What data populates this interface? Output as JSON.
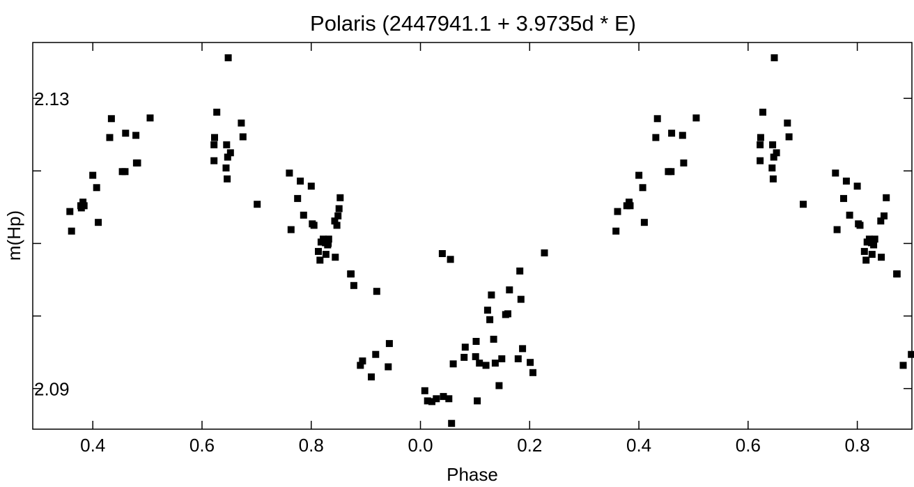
{
  "chart_data": {
    "type": "scatter",
    "title": "Polaris (2447941.1 + 3.9735d * E)",
    "xlabel": "Phase",
    "ylabel": "m(Hp)",
    "x_axis_note": "phase wraps from 1.0 to 0.0; x values are continuous, tick labels show phase mod 1",
    "xlim": [
      0.29,
      1.9
    ],
    "ylim": [
      2.1377,
      2.0844
    ],
    "y_inverted": true,
    "grid": false,
    "legend": "none",
    "x_ticks": [
      {
        "x": 0.4,
        "label": "0.4"
      },
      {
        "x": 0.6,
        "label": "0.6"
      },
      {
        "x": 0.8,
        "label": "0.8"
      },
      {
        "x": 1.0,
        "label": "0.0"
      },
      {
        "x": 1.2,
        "label": "0.2"
      },
      {
        "x": 1.4,
        "label": "0.4"
      },
      {
        "x": 1.6,
        "label": "0.6"
      },
      {
        "x": 1.8,
        "label": "0.8"
      }
    ],
    "y_ticks": [
      {
        "y": 2.09,
        "label": "2.09"
      },
      {
        "y": 2.13,
        "label": "2.13"
      }
    ],
    "y_minor_ticks": [
      2.1,
      2.11,
      2.12
    ],
    "marker": {
      "shape": "square",
      "color": "#000000"
    },
    "x": [
      0.361,
      0.358,
      0.378,
      0.382,
      0.379,
      0.384,
      0.41,
      0.407,
      0.4,
      0.431,
      0.434,
      0.454,
      0.459,
      0.46,
      0.482,
      0.48,
      0.479,
      0.505,
      0.622,
      0.622,
      0.623,
      0.627,
      0.644,
      0.647,
      0.646,
      0.652,
      0.645,
      0.672,
      0.675,
      0.648,
      0.701,
      0.76,
      0.763,
      0.775,
      0.78,
      0.786,
      0.8,
      0.802,
      0.805,
      0.813,
      0.816,
      0.818,
      0.822,
      0.826,
      0.83,
      0.827,
      0.831,
      0.832,
      0.843,
      0.844,
      0.847,
      0.849,
      0.851,
      0.853,
      0.872,
      0.873,
      0.878,
      0.89,
      0.894,
      0.91,
      0.92,
      0.918,
      0.941,
      0.943,
      1.008,
      1.013,
      1.021,
      1.029,
      1.042,
      1.052,
      1.057,
      1.04,
      1.055,
      1.06,
      1.08,
      1.082,
      1.101,
      1.104,
      1.108,
      1.102,
      1.12,
      1.123,
      1.127,
      1.13,
      1.134,
      1.137,
      1.144,
      1.149,
      1.156,
      1.16,
      1.163,
      1.179,
      1.184,
      1.187,
      1.182,
      1.201,
      1.206,
      1.227,
      1.361,
      1.358,
      1.378,
      1.382,
      1.384,
      1.41,
      1.407,
      1.4,
      1.431,
      1.434,
      1.454,
      1.459,
      1.46,
      1.482,
      1.48,
      1.505,
      1.622,
      1.622,
      1.623,
      1.627,
      1.644,
      1.647,
      1.646,
      1.652,
      1.645,
      1.672,
      1.675,
      1.648,
      1.701,
      1.76,
      1.763,
      1.775,
      1.78,
      1.786,
      1.8,
      1.802,
      1.805,
      1.813,
      1.816,
      1.818,
      1.822,
      1.826,
      1.83,
      1.827,
      1.832,
      1.843,
      1.844,
      1.849,
      1.853,
      1.872,
      1.873,
      1.884,
      1.899
    ],
    "y": [
      2.1117,
      2.1144,
      2.1152,
      2.1157,
      2.1149,
      2.1152,
      2.1129,
      2.1177,
      2.1194,
      2.1246,
      2.1272,
      2.1199,
      2.1199,
      2.1252,
      2.1211,
      2.1211,
      2.1249,
      2.1273,
      2.1214,
      2.1236,
      2.1246,
      2.1281,
      2.1204,
      2.1219,
      2.1189,
      2.1225,
      2.1236,
      2.1266,
      2.1247,
      2.1356,
      2.1154,
      2.1197,
      2.1119,
      2.1162,
      2.1186,
      2.1139,
      2.1179,
      2.1127,
      2.1125,
      2.1089,
      2.1077,
      2.1102,
      2.1106,
      2.1101,
      2.1098,
      2.1085,
      2.11,
      2.1106,
      2.1131,
      2.1081,
      2.1125,
      2.1138,
      2.1148,
      2.1163,
      2.1058,
      2.1058,
      2.1042,
      2.0932,
      2.0938,
      2.0916,
      2.1034,
      2.0947,
      2.093,
      2.0962,
      2.0897,
      2.0883,
      2.0882,
      2.0886,
      2.0889,
      2.0886,
      2.0852,
      2.1086,
      2.1078,
      2.0934,
      2.0943,
      2.0957,
      2.0944,
      2.0883,
      2.0935,
      2.0965,
      2.0932,
      2.1008,
      2.0995,
      2.1029,
      2.0968,
      2.0935,
      2.0904,
      2.0941,
      2.1002,
      2.1003,
      2.1036,
      2.0941,
      2.1023,
      2.0955,
      2.1062,
      2.0936,
      2.0922,
      2.1087,
      2.1144,
      2.1117,
      2.1152,
      2.1157,
      2.1152,
      2.1129,
      2.1177,
      2.1194,
      2.1246,
      2.1272,
      2.1199,
      2.1199,
      2.1252,
      2.1211,
      2.1249,
      2.1273,
      2.1214,
      2.1236,
      2.1246,
      2.1281,
      2.1204,
      2.1219,
      2.1189,
      2.1225,
      2.1236,
      2.1266,
      2.1247,
      2.1356,
      2.1154,
      2.1197,
      2.1119,
      2.1162,
      2.1186,
      2.1139,
      2.1179,
      2.1127,
      2.1125,
      2.1089,
      2.1077,
      2.1102,
      2.1106,
      2.1101,
      2.1098,
      2.1085,
      2.1106,
      2.1131,
      2.1081,
      2.1138,
      2.1163,
      2.1058,
      2.1058,
      2.0932,
      2.0947
    ]
  }
}
